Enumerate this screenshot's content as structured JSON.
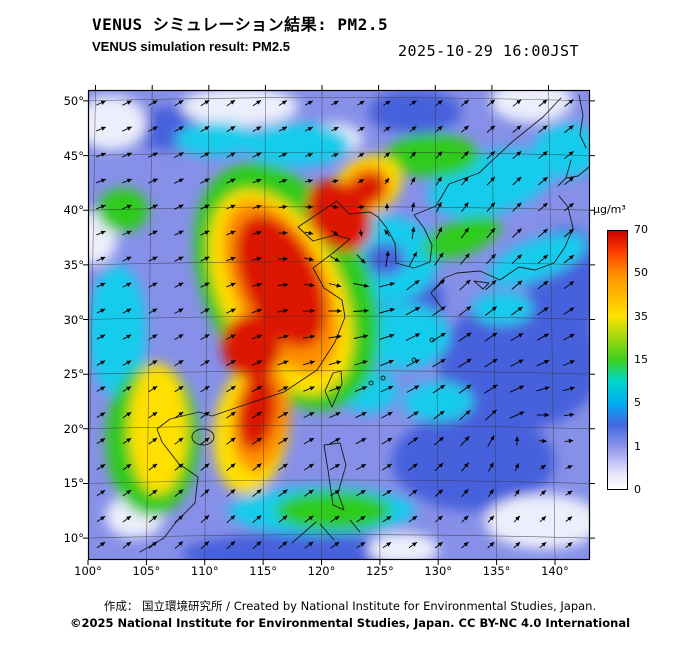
{
  "header": {
    "title_jp": "VENUS シミュレーション結果: PM2.5",
    "title_en": "VENUS simulation result: PM2.5",
    "timestamp": "2025-10-29 16:00JST"
  },
  "footer": {
    "credit": "作成： 国立環境研究所 / Created by National Institute for Environmental Studies, Japan.",
    "license": "©2025 National Institute for Environmental Studies, Japan. CC BY-NC 4.0 International"
  },
  "chart_data": {
    "type": "heatmap",
    "variable": "PM2.5",
    "title": "VENUS シミュレーション結果: PM2.5",
    "subtitle": "VENUS simulation result: PM2.5",
    "timestamp": "2025-10-29 16:00JST",
    "overlay": "wind vector arrows",
    "lon_range": [
      100,
      143
    ],
    "lat_range": [
      8,
      51
    ],
    "lon_ticks": [
      "100°",
      "105°",
      "110°",
      "115°",
      "120°",
      "125°",
      "130°",
      "135°",
      "140°"
    ],
    "lon_tick_values": [
      100,
      105,
      110,
      115,
      120,
      125,
      130,
      135,
      140
    ],
    "lat_ticks": [
      "50°",
      "45°",
      "40°",
      "35°",
      "30°",
      "25°",
      "20°",
      "15°",
      "10°"
    ],
    "lat_tick_values": [
      50,
      45,
      40,
      35,
      30,
      25,
      20,
      15,
      10
    ],
    "colorbar": {
      "unit": "µg/m³",
      "tick_labels": [
        "70",
        "50",
        "35",
        "15",
        "5",
        "1",
        "0"
      ],
      "gradient": [
        [
          "#cc0000",
          0
        ],
        [
          "#ff3c00",
          8
        ],
        [
          "#ff9100",
          17
        ],
        [
          "#ffe100",
          33
        ],
        [
          "#3ecf1e",
          50
        ],
        [
          "#00d8c8",
          58
        ],
        [
          "#00aaf0",
          67
        ],
        [
          "#4169e1",
          75
        ],
        [
          "#8890ea",
          83
        ],
        [
          "#e6e6fa",
          94
        ],
        [
          "#ffffff",
          100
        ]
      ]
    },
    "base_color": "#8690e8",
    "heat_regions": [
      [
        "#4660dc",
        137,
        26,
        7,
        6,
        0
      ],
      [
        "#4660dc",
        133,
        17,
        7,
        4.5,
        0
      ],
      [
        "#4660dc",
        141,
        33.5,
        3.5,
        5,
        0
      ],
      [
        "#4660dc",
        107.5,
        47.5,
        4,
        2,
        0
      ],
      [
        "#4660dc",
        128,
        49,
        4,
        2,
        0
      ],
      [
        "#4660dc",
        118,
        8.5,
        10,
        2,
        0
      ],
      [
        "#4660dc",
        127,
        31.5,
        3.5,
        3.5,
        0
      ],
      [
        "#eceefb",
        102,
        48,
        3,
        2.5,
        0
      ],
      [
        "#eceefb",
        113,
        49.5,
        5,
        1.8,
        0
      ],
      [
        "#eceefb",
        121,
        46.5,
        2.5,
        1.5,
        0
      ],
      [
        "#eceefb",
        138,
        50,
        3.5,
        2,
        0
      ],
      [
        "#eceefb",
        100.5,
        37.5,
        2,
        2.5,
        0
      ],
      [
        "#eceefb",
        139,
        11.5,
        5,
        2.5,
        0
      ],
      [
        "#eceefb",
        104,
        12,
        2.5,
        2,
        0
      ],
      [
        "#eceefb",
        127,
        9,
        3,
        1.5,
        0
      ],
      [
        "#17ccec",
        134.5,
        42.5,
        5.5,
        2.8,
        -15
      ],
      [
        "#17ccec",
        125.5,
        35.5,
        4.5,
        4,
        0
      ],
      [
        "#17ccec",
        127,
        28.5,
        4,
        3,
        0
      ],
      [
        "#17ccec",
        120,
        12.5,
        8,
        2.2,
        0
      ],
      [
        "#17ccec",
        102.5,
        29,
        2.5,
        6,
        0
      ],
      [
        "#17ccec",
        118,
        46,
        4.5,
        2,
        0
      ],
      [
        "#17ccec",
        130,
        22.5,
        3,
        1.8,
        0
      ],
      [
        "#17ccec",
        138.5,
        35.5,
        4.5,
        1.8,
        -20
      ],
      [
        "#17ccec",
        141,
        45.5,
        2.8,
        2.5,
        0
      ],
      [
        "#17ccec",
        111,
        46.5,
        3.5,
        1.6,
        0
      ],
      [
        "#17ccec",
        135.5,
        31,
        2.6,
        1.5,
        0
      ],
      [
        "#17ccec",
        124,
        23.5,
        2.5,
        2,
        0
      ],
      [
        "#4660dc",
        125.5,
        35.5,
        1.7,
        1.5,
        0
      ],
      [
        "#2ecb1e",
        117,
        33,
        7,
        12,
        -25
      ],
      [
        "#2ecb1e",
        105.5,
        19,
        4,
        7,
        0
      ],
      [
        "#2ecb1e",
        129.5,
        45,
        4,
        2,
        0
      ],
      [
        "#2ecb1e",
        121,
        12.5,
        5,
        1.8,
        0
      ],
      [
        "#2ecb1e",
        132,
        37.5,
        3.5,
        1.6,
        -20
      ],
      [
        "#2ecb1e",
        103,
        40,
        2.2,
        2,
        0
      ],
      [
        "#ffe000",
        116.5,
        32.5,
        5.2,
        10,
        -25
      ],
      [
        "#ffe000",
        114,
        20,
        3.2,
        6,
        8
      ],
      [
        "#ffe000",
        106,
        20,
        2.5,
        6,
        0
      ],
      [
        "#ffe000",
        124,
        42.3,
        3,
        2.6,
        -30
      ],
      [
        "#ff9000",
        116.5,
        33,
        4,
        8.5,
        -25
      ],
      [
        "#ff9000",
        114.8,
        21,
        2.4,
        5,
        8
      ],
      [
        "#ff9000",
        123.8,
        42,
        2.2,
        2,
        -30
      ],
      [
        "#dc1400",
        116.5,
        33.5,
        3.2,
        6.5,
        -25
      ],
      [
        "#dc1400",
        121.5,
        39.5,
        2.5,
        3.5,
        -35
      ],
      [
        "#dc1400",
        124,
        42,
        1.6,
        1.4,
        -30
      ],
      [
        "#dc1400",
        114,
        27.5,
        2.5,
        3,
        -15
      ],
      [
        "#dc1400",
        114.5,
        21.5,
        1.6,
        3.5,
        10
      ]
    ],
    "wind": {
      "cyclone_center_lonlat": [
        125.5,
        35.5
      ],
      "anticyclone_center_lonlat": [
        137,
        20
      ]
    }
  }
}
